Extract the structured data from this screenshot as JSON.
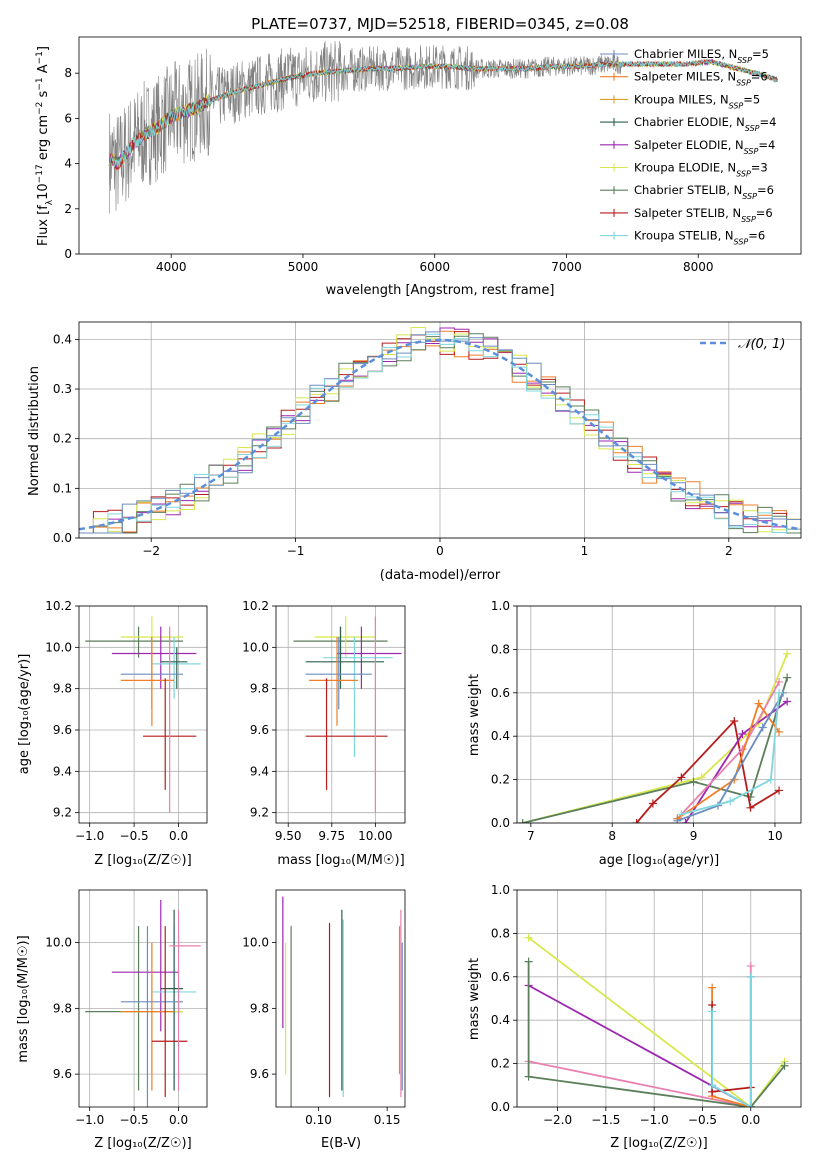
{
  "chart_data": [
    {
      "id": "spectrum",
      "type": "line",
      "title": "PLATE=0737, MJD=52518, FIBERID=0345, z=0.08",
      "xlabel": "wavelength [Angstrom, rest frame]",
      "ylabel": "Flux [f$_λ$10$^{-17}$ erg cm$^{-2}$ s$^{-1}$ A$^{-1}$]",
      "ylabel_parts": [
        "Flux [f",
        "λ",
        "10",
        "−17",
        " erg cm",
        "−2",
        " s",
        "−1",
        " A",
        "−1",
        "]"
      ],
      "xlim": [
        3300,
        8780
      ],
      "ylim": [
        0,
        9.6
      ],
      "xticks": [
        4000,
        5000,
        6000,
        7000,
        8000
      ],
      "yticks": [
        0,
        2,
        4,
        6,
        8
      ],
      "grid": false,
      "legend_position": "right",
      "continuum": {
        "x": [
          3530,
          3600,
          3700,
          3800,
          3900,
          4000,
          4100,
          4200,
          4300,
          4500,
          4700,
          4900,
          5100,
          5300,
          5500,
          5700,
          5900,
          6100,
          6300,
          6500,
          6700,
          6900,
          7100,
          7300,
          7500,
          7700,
          7900,
          8100,
          8300,
          8500,
          8600
        ],
        "y": [
          4.2,
          4.0,
          4.8,
          5.3,
          5.6,
          6.1,
          6.3,
          6.5,
          6.8,
          7.2,
          7.5,
          7.8,
          8.0,
          8.1,
          8.2,
          8.2,
          8.3,
          8.3,
          8.2,
          8.2,
          8.2,
          8.3,
          8.3,
          8.4,
          8.4,
          8.4,
          8.4,
          8.5,
          8.2,
          7.9,
          7.7
        ]
      },
      "legend": [
        {
          "label": "Chabrier MILES, N",
          "sub": "SSP",
          "suffix": "=5",
          "color": "#6c8ebf"
        },
        {
          "label": "Salpeter MILES, N",
          "sub": "SSP",
          "suffix": "=6",
          "color": "#f07f28"
        },
        {
          "label": "Kroupa MILES, N",
          "sub": "SSP",
          "suffix": "=5",
          "color": "#d9a028"
        },
        {
          "label": "Chabrier ELODIE, N",
          "sub": "SSP",
          "suffix": "=4",
          "color": "#2f5f4f"
        },
        {
          "label": "Salpeter ELODIE, N",
          "sub": "SSP",
          "suffix": "=4",
          "color": "#9c27b0"
        },
        {
          "label": "Kroupa ELODIE, N",
          "sub": "SSP",
          "suffix": "=3",
          "color": "#d8e84c"
        },
        {
          "label": "Chabrier STELIB, N",
          "sub": "SSP",
          "suffix": "=6",
          "color": "#5a7f5a"
        },
        {
          "label": "Salpeter STELIB, N",
          "sub": "SSP",
          "suffix": "=6",
          "color": "#b71c1c"
        },
        {
          "label": "Kroupa STELIB, N",
          "sub": "SSP",
          "suffix": "=6",
          "color": "#7fd7df"
        }
      ]
    },
    {
      "id": "residuals",
      "type": "bar",
      "title": "",
      "xlabel": "(data-model)/error",
      "ylabel": "Normed distribution",
      "xlim": [
        -2.5,
        2.5
      ],
      "ylim": [
        0,
        0.435
      ],
      "xticks": [
        -2,
        -1,
        0,
        1,
        2
      ],
      "yticks": [
        0.0,
        0.1,
        0.2,
        0.3,
        0.4
      ],
      "grid": true,
      "legend_position": "top-right",
      "legend_label": "𝒩(0, 1)",
      "gaussian": {
        "mean": 0,
        "sigma": 1
      },
      "bin_width": 0.1,
      "series_colors": [
        "#f07f28",
        "#9c27b0",
        "#b71c1c",
        "#d8e84c",
        "#5a7f5a",
        "#7fd7df",
        "#6c8ebf"
      ]
    },
    {
      "id": "age-vs-Z",
      "type": "scatter",
      "xlabel": "Z [log₁₀(Z/Z☉)]",
      "ylabel": "age  [log₁₀(age/yr)]",
      "xlim": [
        -1.12,
        0.32
      ],
      "ylim": [
        9.15,
        10.2
      ],
      "xticks": [
        -1.0,
        -0.5,
        0.0
      ],
      "yticks": [
        9.2,
        9.4,
        9.6,
        9.8,
        10.0,
        10.2
      ],
      "grid": true,
      "points": [
        {
          "x": -0.45,
          "xlo": -1.05,
          "xhi": 0.05,
          "y": 10.03,
          "ylo": 9.95,
          "yhi": 10.1,
          "color": "#5a7f5a"
        },
        {
          "x": -0.3,
          "xlo": -0.65,
          "xhi": 0.05,
          "y": 10.05,
          "ylo": 9.95,
          "yhi": 10.15,
          "color": "#d8e84c"
        },
        {
          "x": -0.2,
          "xlo": -0.75,
          "xhi": 0.2,
          "y": 9.97,
          "ylo": 9.8,
          "yhi": 10.1,
          "color": "#9c27b0"
        },
        {
          "x": -0.05,
          "xlo": -0.3,
          "xhi": 0.25,
          "y": 9.92,
          "ylo": 9.75,
          "yhi": 10.05,
          "color": "#7fd7df"
        },
        {
          "x": -0.02,
          "xlo": -0.2,
          "xhi": 0.1,
          "y": 9.93,
          "ylo": 9.8,
          "yhi": 10.0,
          "color": "#2f5f4f"
        },
        {
          "x": -0.3,
          "xlo": -0.65,
          "xhi": 0.05,
          "y": 9.87,
          "ylo": 9.7,
          "yhi": 10.05,
          "color": "#6c8ebf"
        },
        {
          "x": -0.3,
          "xlo": -0.65,
          "xhi": -0.05,
          "y": 9.84,
          "ylo": 9.62,
          "yhi": 10.05,
          "color": "#f07f28"
        },
        {
          "x": -0.15,
          "xlo": -0.4,
          "xhi": 0.2,
          "y": 9.57,
          "ylo": 9.31,
          "yhi": 9.85,
          "color": "#b71c1c"
        },
        {
          "x": -0.1,
          "xlo": -0.1,
          "xhi": -0.1,
          "y": 9.7,
          "ylo": 9.2,
          "yhi": 10.1,
          "color": "#e880b0"
        }
      ]
    },
    {
      "id": "age-vs-mass",
      "type": "scatter",
      "xlabel": "mass [log₁₀(M/M☉)]",
      "ylabel": "",
      "xlim": [
        9.43,
        10.17
      ],
      "ylim": [
        9.15,
        10.2
      ],
      "xticks": [
        9.5,
        9.75,
        10.0
      ],
      "xticklabels": [
        "9.50",
        "9.75",
        "10.00"
      ],
      "yticks": [
        9.2,
        9.4,
        9.6,
        9.8,
        10.0,
        10.2
      ],
      "grid": true,
      "points": [
        {
          "x": 9.8,
          "xlo": 9.53,
          "xhi": 10.07,
          "y": 10.03,
          "ylo": 9.95,
          "yhi": 10.1,
          "color": "#5a7f5a"
        },
        {
          "x": 9.83,
          "xlo": 9.65,
          "xhi": 10.0,
          "y": 10.05,
          "ylo": 9.95,
          "yhi": 10.15,
          "color": "#d8e84c"
        },
        {
          "x": 9.92,
          "xlo": 9.78,
          "xhi": 10.15,
          "y": 9.97,
          "ylo": 9.8,
          "yhi": 10.1,
          "color": "#9c27b0"
        },
        {
          "x": 9.88,
          "xlo": 9.7,
          "xhi": 10.1,
          "y": 9.95,
          "ylo": 9.47,
          "yhi": 10.05,
          "color": "#7fd7df"
        },
        {
          "x": 9.8,
          "xlo": 9.6,
          "xhi": 10.05,
          "y": 9.93,
          "ylo": 9.8,
          "yhi": 10.1,
          "color": "#2f5f4f"
        },
        {
          "x": 9.79,
          "xlo": 9.6,
          "xhi": 9.98,
          "y": 9.87,
          "ylo": 9.7,
          "yhi": 10.05,
          "color": "#6c8ebf"
        },
        {
          "x": 9.78,
          "xlo": 9.62,
          "xhi": 9.9,
          "y": 9.84,
          "ylo": 9.62,
          "yhi": 10.05,
          "color": "#f07f28"
        },
        {
          "x": 9.72,
          "xlo": 9.6,
          "xhi": 10.07,
          "y": 9.57,
          "ylo": 9.31,
          "yhi": 9.85,
          "color": "#b71c1c"
        },
        {
          "x": 10.0,
          "xlo": 10.0,
          "xhi": 10.0,
          "y": 9.7,
          "ylo": 9.2,
          "yhi": 10.15,
          "color": "#e880b0"
        }
      ]
    },
    {
      "id": "massweight-vs-age",
      "type": "line",
      "xlabel": "age  [log₁₀(age/yr)]",
      "ylabel": "mass weight",
      "xlim": [
        6.83,
        10.32
      ],
      "ylim": [
        0,
        1.0
      ],
      "xticks": [
        7,
        8,
        9,
        10
      ],
      "yticks": [
        0.0,
        0.2,
        0.4,
        0.6,
        0.8,
        1.0
      ],
      "grid": true,
      "series": [
        {
          "color": "#d8e84c",
          "x": [
            6.9,
            9.1,
            9.8,
            10.15
          ],
          "y": [
            0.0,
            0.21,
            0.46,
            0.78
          ]
        },
        {
          "color": "#5a7f5a",
          "x": [
            6.9,
            9.0,
            9.7,
            10.15
          ],
          "y": [
            0.0,
            0.19,
            0.12,
            0.67
          ]
        },
        {
          "color": "#b71c1c",
          "x": [
            8.3,
            8.5,
            8.85,
            9.5,
            9.7,
            10.05
          ],
          "y": [
            0.0,
            0.09,
            0.21,
            0.47,
            0.07,
            0.15
          ]
        },
        {
          "color": "#9c27b0",
          "x": [
            8.9,
            9.6,
            10.15
          ],
          "y": [
            0.0,
            0.41,
            0.56
          ]
        },
        {
          "color": "#e880b0",
          "x": [
            8.8,
            9.6,
            10.05
          ],
          "y": [
            0.02,
            0.34,
            0.65
          ]
        },
        {
          "color": "#f07f28",
          "x": [
            8.8,
            9.5,
            9.8,
            10.05
          ],
          "y": [
            0.02,
            0.2,
            0.55,
            0.42
          ]
        },
        {
          "color": "#6c8ebf",
          "x": [
            8.8,
            9.3,
            9.85,
            10.1
          ],
          "y": [
            0.01,
            0.08,
            0.44,
            0.6
          ]
        },
        {
          "color": "#7fd7df",
          "x": [
            8.85,
            9.45,
            9.95,
            10.05
          ],
          "y": [
            0.04,
            0.1,
            0.2,
            0.6
          ]
        }
      ]
    },
    {
      "id": "mass-vs-Z",
      "type": "scatter",
      "xlabel": "Z [log₁₀(Z/Z☉)]",
      "ylabel": "mass [log₁₀(M/M☉)]",
      "xlim": [
        -1.12,
        0.32
      ],
      "ylim": [
        9.5,
        10.16
      ],
      "xticks": [
        -1.0,
        -0.5,
        0.0
      ],
      "yticks": [
        9.6,
        9.8,
        10.0
      ],
      "grid": true,
      "points": [
        {
          "x": -0.45,
          "xlo": -1.05,
          "xhi": 0.05,
          "y": 9.79,
          "ylo": 9.55,
          "yhi": 10.05,
          "color": "#5a7f5a"
        },
        {
          "x": -0.3,
          "xlo": -0.65,
          "xhi": 0.05,
          "y": 9.79,
          "ylo": 9.6,
          "yhi": 10.0,
          "color": "#d8e84c"
        },
        {
          "x": -0.2,
          "xlo": -0.75,
          "xhi": 0.0,
          "y": 9.91,
          "ylo": 9.73,
          "yhi": 10.13,
          "color": "#9c27b0"
        },
        {
          "x": -0.05,
          "xlo": -0.3,
          "xhi": 0.2,
          "y": 9.85,
          "ylo": 9.55,
          "yhi": 10.05,
          "color": "#7fd7df"
        },
        {
          "x": -0.05,
          "xlo": -0.2,
          "xhi": 0.05,
          "y": 9.86,
          "ylo": 9.55,
          "yhi": 10.1,
          "color": "#2f5f4f"
        },
        {
          "x": -0.35,
          "xlo": -0.65,
          "xhi": 0.05,
          "y": 9.82,
          "ylo": 9.5,
          "yhi": 10.05,
          "color": "#6c8ebf"
        },
        {
          "x": -0.3,
          "xlo": -0.65,
          "xhi": -0.05,
          "y": 9.79,
          "ylo": 9.55,
          "yhi": 10.0,
          "color": "#f07f28"
        },
        {
          "x": -0.15,
          "xlo": -0.3,
          "xhi": 0.1,
          "y": 9.7,
          "ylo": 9.53,
          "yhi": 10.05,
          "color": "#b71c1c"
        },
        {
          "x": 0.0,
          "xlo": -0.1,
          "xhi": 0.25,
          "y": 9.99,
          "ylo": 9.55,
          "yhi": 10.1,
          "color": "#e880b0"
        }
      ]
    },
    {
      "id": "mass-vs-ebv",
      "type": "scatter",
      "xlabel": "E(B-V)",
      "ylabel": "",
      "xlim": [
        0.069,
        0.163
      ],
      "ylim": [
        9.5,
        10.16
      ],
      "xticks": [
        0.1,
        0.15
      ],
      "xticklabels": [
        "0.10",
        "0.15"
      ],
      "yticks": [
        9.6,
        9.8,
        10.0
      ],
      "grid": false,
      "points": [
        {
          "x": 0.074,
          "ylo": 9.74,
          "yhi": 10.14,
          "color": "#9c27b0"
        },
        {
          "x": 0.076,
          "ylo": 9.6,
          "yhi": 10.0,
          "color": "#d8e84c"
        },
        {
          "x": 0.08,
          "ylo": 9.47,
          "yhi": 10.05,
          "color": "#5a7f5a"
        },
        {
          "x": 0.108,
          "ylo": 9.53,
          "yhi": 10.06,
          "color": "#b71c1c"
        },
        {
          "x": 0.117,
          "ylo": 9.55,
          "yhi": 10.1,
          "color": "#2f5f4f"
        },
        {
          "x": 0.118,
          "ylo": 9.53,
          "yhi": 10.07,
          "color": "#7fd7df"
        },
        {
          "x": 0.159,
          "ylo": 9.6,
          "yhi": 10.05,
          "color": "#f07f28"
        },
        {
          "x": 0.16,
          "ylo": 9.53,
          "yhi": 10.1,
          "color": "#e880b0"
        },
        {
          "x": 0.161,
          "ylo": 9.55,
          "yhi": 10.0,
          "color": "#6c8ebf"
        }
      ]
    },
    {
      "id": "massweight-vs-Z",
      "type": "line",
      "xlabel": "Z [log₁₀(Z/Z☉)]",
      "ylabel": "mass weight",
      "xlim": [
        -2.42,
        0.52
      ],
      "ylim": [
        0,
        1.0
      ],
      "xticks": [
        -2.0,
        -1.5,
        -1.0,
        -0.5,
        0.0
      ],
      "yticks": [
        0.0,
        0.2,
        0.4,
        0.6,
        0.8,
        1.0
      ],
      "grid": true,
      "series": [
        {
          "color": "#d8e84c",
          "x": [
            -2.3,
            0.0,
            0.35
          ],
          "y": [
            0.78,
            0.0,
            0.21
          ]
        },
        {
          "color": "#9c27b0",
          "x": [
            -2.3,
            0.0
          ],
          "y": [
            0.56,
            0.0
          ]
        },
        {
          "color": "#e880b0",
          "x": [
            -2.3,
            0.0,
            0.0
          ],
          "y": [
            0.21,
            0.0,
            0.65
          ]
        },
        {
          "color": "#5a7f5a",
          "x": [
            -2.3,
            -2.3,
            0.0,
            0.35
          ],
          "y": [
            0.67,
            0.14,
            0.0,
            0.19
          ]
        },
        {
          "color": "#f07f28",
          "x": [
            -0.4,
            -0.4,
            0.0
          ],
          "y": [
            0.55,
            0.05,
            0.0
          ]
        },
        {
          "color": "#b71c1c",
          "x": [
            -0.4,
            -0.4,
            0.0
          ],
          "y": [
            0.47,
            0.07,
            0.09
          ]
        },
        {
          "color": "#6c8ebf",
          "x": [
            -0.4,
            0.0,
            0.0
          ],
          "y": [
            0.1,
            0.0,
            0.6
          ]
        },
        {
          "color": "#7fd7df",
          "x": [
            -0.4,
            -0.4,
            0.0,
            0.0
          ],
          "y": [
            0.44,
            0.1,
            0.0,
            0.6
          ]
        }
      ]
    }
  ]
}
